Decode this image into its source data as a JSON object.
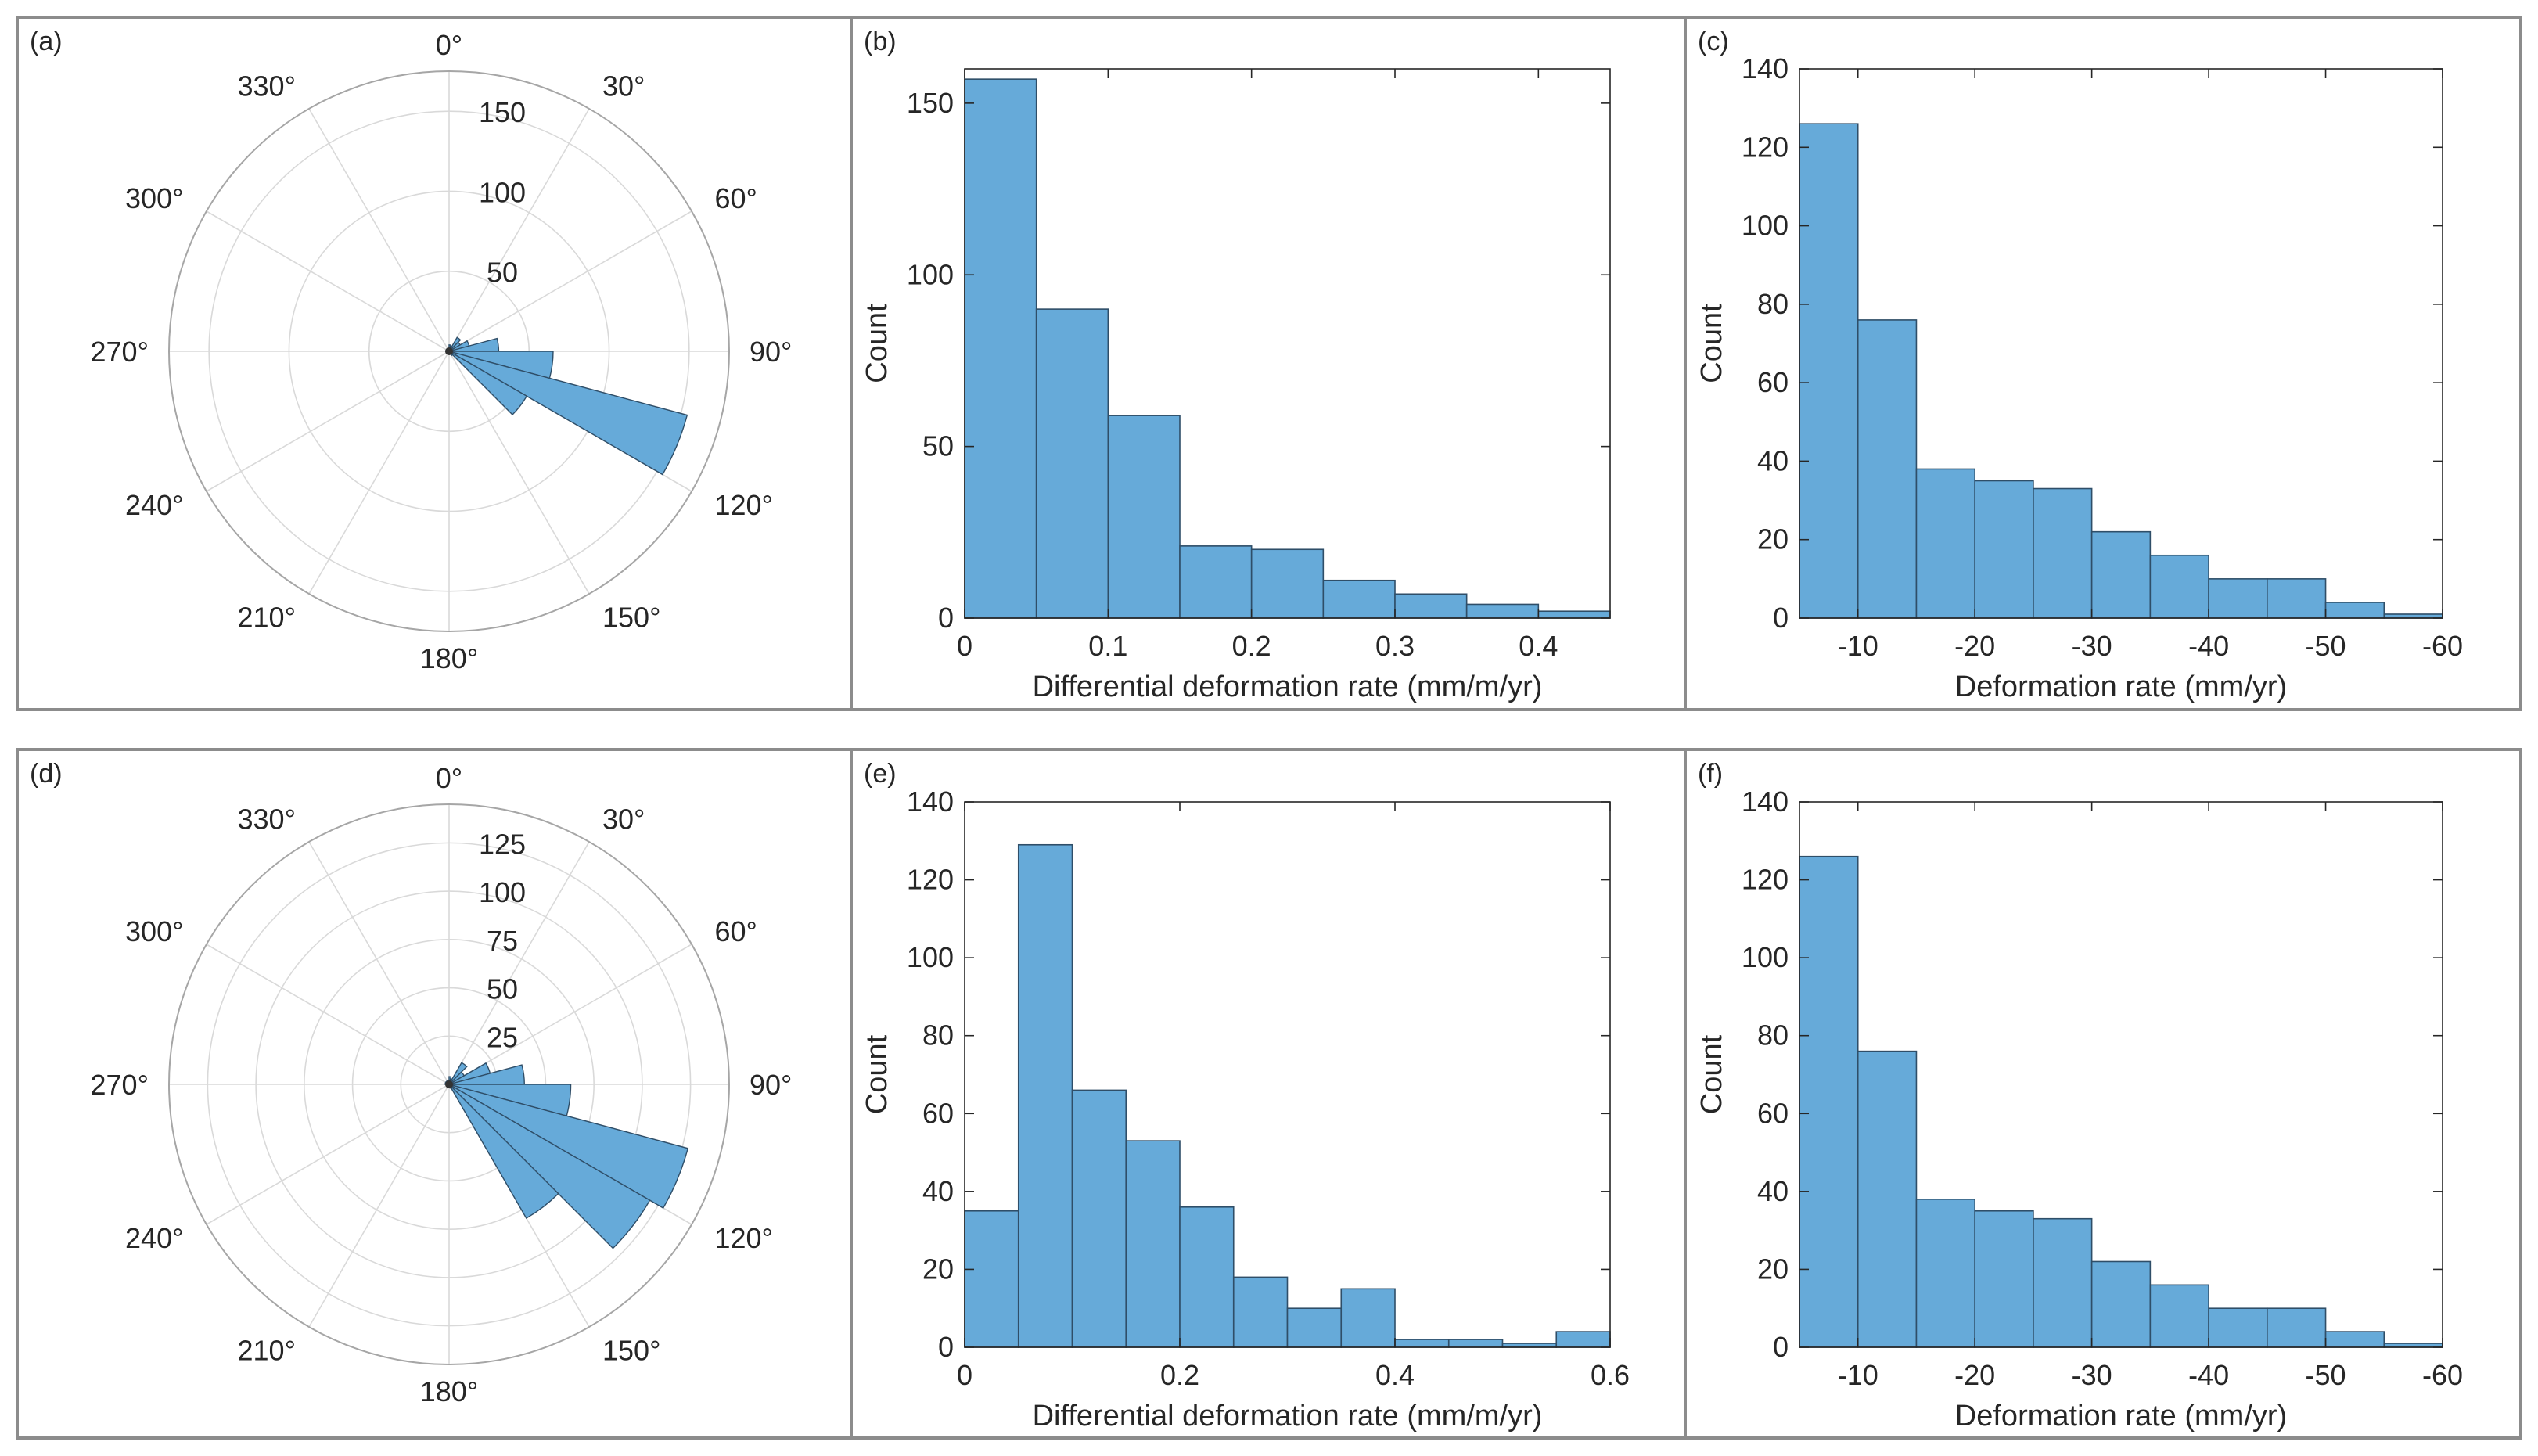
{
  "colors": {
    "bar_fill": "#66aad9",
    "bar_edge": "#2f4e68",
    "axis": "#262626",
    "grid": "#d9d9d9",
    "panel_border": "#8c8c8c"
  },
  "chart_data": [
    {
      "panel_label": "(a)",
      "type": "polar-histogram",
      "theta_tick_labels": [
        "0°",
        "30°",
        "60°",
        "90°",
        "120°",
        "150°",
        "180°",
        "210°",
        "240°",
        "270°",
        "300°",
        "330°"
      ],
      "r_tick_labels": [
        "50",
        "100",
        "150"
      ],
      "r_ticks": [
        50,
        100,
        150
      ],
      "rlim": [
        0,
        175
      ],
      "bin_width_deg": 15,
      "bins": [
        {
          "start": 0,
          "count": 4
        },
        {
          "start": 15,
          "count": 3
        },
        {
          "start": 30,
          "count": 10
        },
        {
          "start": 45,
          "count": 8
        },
        {
          "start": 60,
          "count": 13
        },
        {
          "start": 75,
          "count": 31
        },
        {
          "start": 90,
          "count": 65
        },
        {
          "start": 105,
          "count": 154
        },
        {
          "start": 120,
          "count": 56
        },
        {
          "start": 135,
          "count": 3
        },
        {
          "start": 150,
          "count": 2
        },
        {
          "start": 165,
          "count": 1
        },
        {
          "start": 180,
          "count": 1
        },
        {
          "start": 195,
          "count": 1
        },
        {
          "start": 210,
          "count": 1
        },
        {
          "start": 225,
          "count": 1
        },
        {
          "start": 240,
          "count": 1
        },
        {
          "start": 255,
          "count": 1
        },
        {
          "start": 270,
          "count": 2
        },
        {
          "start": 285,
          "count": 2
        },
        {
          "start": 300,
          "count": 2
        },
        {
          "start": 315,
          "count": 2
        },
        {
          "start": 330,
          "count": 2
        },
        {
          "start": 345,
          "count": 2
        }
      ]
    },
    {
      "panel_label": "(b)",
      "type": "histogram",
      "xlabel": "Differential deformation rate (mm/m/yr)",
      "ylabel": "Count",
      "bin_edges": [
        0,
        0.05,
        0.1,
        0.15,
        0.2,
        0.25,
        0.3,
        0.35,
        0.4,
        0.45
      ],
      "counts": [
        157,
        90,
        59,
        21,
        20,
        11,
        7,
        4,
        2
      ],
      "xlim": [
        0,
        0.45
      ],
      "ylim": [
        0,
        160
      ],
      "x_ticks": [
        0,
        0.1,
        0.2,
        0.3,
        0.4
      ],
      "x_tick_labels": [
        "0",
        "0.1",
        "0.2",
        "0.3",
        "0.4"
      ],
      "y_ticks": [
        0,
        50,
        100,
        150
      ],
      "y_tick_labels": [
        "0",
        "50",
        "100",
        "150"
      ]
    },
    {
      "panel_label": "(c)",
      "type": "histogram",
      "xlabel": "Deformation rate (mm/yr)",
      "ylabel": "Count",
      "x_reversed": true,
      "bin_edges": [
        -5,
        -10,
        -15,
        -20,
        -25,
        -30,
        -35,
        -40,
        -45,
        -50,
        -55,
        -60
      ],
      "counts": [
        126,
        76,
        38,
        35,
        33,
        22,
        16,
        10,
        10,
        4,
        1
      ],
      "xlim": [
        -5,
        -60
      ],
      "ylim": [
        0,
        140
      ],
      "x_ticks": [
        -10,
        -20,
        -30,
        -40,
        -50,
        -60
      ],
      "x_tick_labels": [
        "-10",
        "-20",
        "-30",
        "-40",
        "-50",
        "-60"
      ],
      "y_ticks": [
        0,
        20,
        40,
        60,
        80,
        100,
        120,
        140
      ],
      "y_tick_labels": [
        "0",
        "20",
        "40",
        "60",
        "80",
        "100",
        "120",
        "140"
      ]
    },
    {
      "panel_label": "(d)",
      "type": "polar-histogram",
      "theta_tick_labels": [
        "0°",
        "30°",
        "60°",
        "90°",
        "120°",
        "150°",
        "180°",
        "210°",
        "240°",
        "270°",
        "300°",
        "330°"
      ],
      "r_tick_labels": [
        "25",
        "50",
        "75",
        "100",
        "125"
      ],
      "r_ticks": [
        25,
        50,
        75,
        100,
        125
      ],
      "rlim": [
        0,
        145
      ],
      "bin_width_deg": 15,
      "bins": [
        {
          "start": 0,
          "count": 4
        },
        {
          "start": 15,
          "count": 3
        },
        {
          "start": 30,
          "count": 13
        },
        {
          "start": 45,
          "count": 9
        },
        {
          "start": 60,
          "count": 22
        },
        {
          "start": 75,
          "count": 39
        },
        {
          "start": 90,
          "count": 63
        },
        {
          "start": 105,
          "count": 128
        },
        {
          "start": 120,
          "count": 120
        },
        {
          "start": 135,
          "count": 80
        },
        {
          "start": 150,
          "count": 2
        },
        {
          "start": 165,
          "count": 1
        },
        {
          "start": 180,
          "count": 1
        },
        {
          "start": 195,
          "count": 1
        },
        {
          "start": 210,
          "count": 1
        },
        {
          "start": 225,
          "count": 1
        },
        {
          "start": 240,
          "count": 1
        },
        {
          "start": 255,
          "count": 1
        },
        {
          "start": 270,
          "count": 2
        },
        {
          "start": 285,
          "count": 2
        },
        {
          "start": 300,
          "count": 2
        },
        {
          "start": 315,
          "count": 2
        },
        {
          "start": 330,
          "count": 2
        },
        {
          "start": 345,
          "count": 2
        }
      ]
    },
    {
      "panel_label": "(e)",
      "type": "histogram",
      "xlabel": "Differential deformation rate (mm/m/yr)",
      "ylabel": "Count",
      "bin_edges": [
        0,
        0.05,
        0.1,
        0.15,
        0.2,
        0.25,
        0.3,
        0.35,
        0.4,
        0.45,
        0.5,
        0.55,
        0.6
      ],
      "counts": [
        35,
        129,
        66,
        53,
        36,
        18,
        10,
        15,
        2,
        2,
        1,
        4
      ],
      "xlim": [
        0,
        0.6
      ],
      "ylim": [
        0,
        140
      ],
      "x_ticks": [
        0,
        0.2,
        0.4,
        0.6
      ],
      "x_tick_labels": [
        "0",
        "0.2",
        "0.4",
        "0.6"
      ],
      "y_ticks": [
        0,
        20,
        40,
        60,
        80,
        100,
        120,
        140
      ],
      "y_tick_labels": [
        "0",
        "20",
        "40",
        "60",
        "80",
        "100",
        "120",
        "140"
      ]
    },
    {
      "panel_label": "(f)",
      "type": "histogram",
      "xlabel": "Deformation rate (mm/yr)",
      "ylabel": "Count",
      "x_reversed": true,
      "bin_edges": [
        -5,
        -10,
        -15,
        -20,
        -25,
        -30,
        -35,
        -40,
        -45,
        -50,
        -55,
        -60
      ],
      "counts": [
        126,
        76,
        38,
        35,
        33,
        22,
        16,
        10,
        10,
        4,
        1
      ],
      "xlim": [
        -5,
        -60
      ],
      "ylim": [
        0,
        140
      ],
      "x_ticks": [
        -10,
        -20,
        -30,
        -40,
        -50,
        -60
      ],
      "x_tick_labels": [
        "-10",
        "-20",
        "-30",
        "-40",
        "-50",
        "-60"
      ],
      "y_ticks": [
        0,
        20,
        40,
        60,
        80,
        100,
        120,
        140
      ],
      "y_tick_labels": [
        "0",
        "20",
        "40",
        "60",
        "80",
        "100",
        "120",
        "140"
      ]
    }
  ]
}
